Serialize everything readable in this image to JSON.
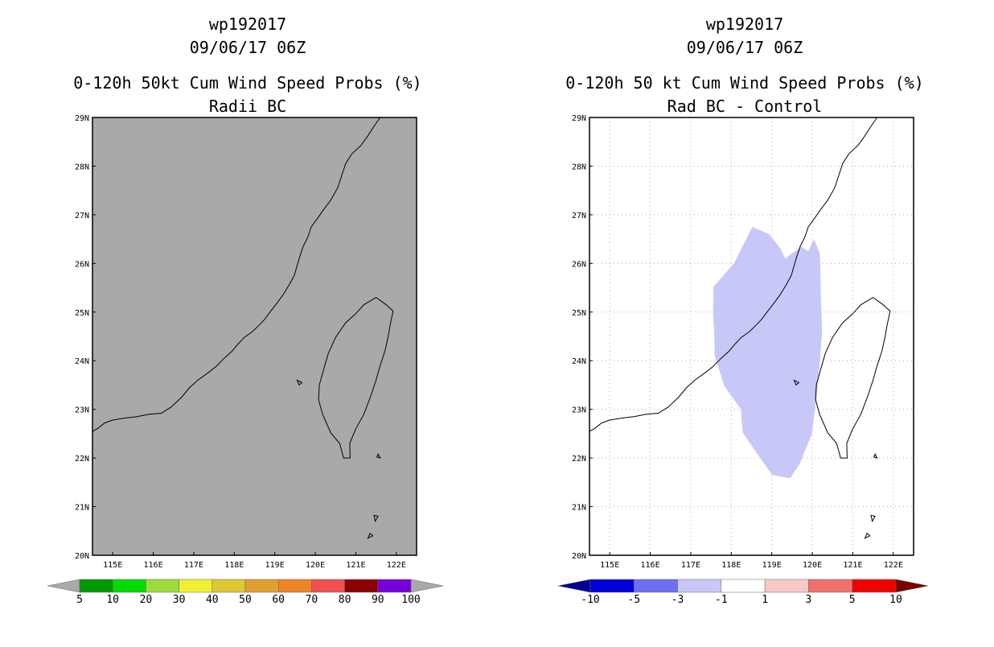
{
  "panels": [
    {
      "title_line1": "wp192017",
      "title_line2": "09/06/17 06Z",
      "title_line3": "0-120h 50kt Cum Wind Speed Probs (%)",
      "title_line4": "Radii BC",
      "background": "#a9a9a9"
    },
    {
      "title_line1": "wp192017",
      "title_line2": "09/06/17 06Z",
      "title_line3": "0-120h 50 kt Cum Wind Speed Probs (%)",
      "title_line4": "Rad BC - Control",
      "background": "#ffffff"
    }
  ],
  "chart_data": [
    {
      "type": "heatmap",
      "title": "0-120h 50kt Cum Wind Speed Probs (%)",
      "subtitle": "Radii BC",
      "storm": "wp192017",
      "time": "09/06/17 06Z",
      "xlim": [
        114.5,
        122.5
      ],
      "ylim": [
        20,
        29
      ],
      "x_ticks": [
        115,
        116,
        117,
        118,
        119,
        120,
        121,
        122
      ],
      "x_tick_labels": [
        "115E",
        "116E",
        "117E",
        "118E",
        "119E",
        "120E",
        "121E",
        "122E"
      ],
      "y_ticks": [
        20,
        21,
        22,
        23,
        24,
        25,
        26,
        27,
        28,
        29
      ],
      "y_tick_labels": [
        "20N",
        "21N",
        "22N",
        "23N",
        "24N",
        "25N",
        "26N",
        "27N",
        "28N",
        "29N"
      ],
      "grid": false,
      "field": "uniform background, no probability contours",
      "colorbar": {
        "levels": [
          "5",
          "10",
          "20",
          "30",
          "40",
          "50",
          "60",
          "70",
          "80",
          "90",
          "100"
        ],
        "colors": [
          "#009a00",
          "#00dc00",
          "#9ddc3c",
          "#f0f032",
          "#dcc832",
          "#e0a030",
          "#f08228",
          "#f05050",
          "#8c0000",
          "#7800dc"
        ],
        "under_color": "#a9a9a9",
        "over_color": "#a9a9a9"
      }
    },
    {
      "type": "heatmap",
      "title": "0-120h 50 kt Cum Wind Speed Probs (%)",
      "subtitle": "Rad BC - Control",
      "storm": "wp192017",
      "time": "09/06/17 06Z",
      "xlim": [
        114.5,
        122.5
      ],
      "ylim": [
        20,
        29
      ],
      "x_ticks": [
        115,
        116,
        117,
        118,
        119,
        120,
        121,
        122
      ],
      "x_tick_labels": [
        "115E",
        "116E",
        "117E",
        "118E",
        "119E",
        "120E",
        "121E",
        "122E"
      ],
      "y_ticks": [
        20,
        21,
        22,
        23,
        24,
        25,
        26,
        27,
        28,
        29
      ],
      "y_tick_labels": [
        "20N",
        "21N",
        "22N",
        "23N",
        "24N",
        "25N",
        "26N",
        "27N",
        "28N",
        "29N"
      ],
      "grid": true,
      "difference_region": {
        "category": "-3 to -1",
        "color": "#c8c8f8",
        "polygon_lonlat": [
          [
            118.52,
            26.75
          ],
          [
            118.94,
            26.6
          ],
          [
            119.22,
            26.3
          ],
          [
            119.33,
            26.1
          ],
          [
            119.73,
            26.35
          ],
          [
            119.9,
            26.25
          ],
          [
            120.04,
            26.5
          ],
          [
            120.19,
            26.2
          ],
          [
            120.21,
            25.4
          ],
          [
            120.24,
            24.6
          ],
          [
            120.19,
            24.0
          ],
          [
            120.11,
            23.3
          ],
          [
            119.99,
            22.5
          ],
          [
            119.69,
            21.88
          ],
          [
            119.45,
            21.58
          ],
          [
            119.01,
            21.65
          ],
          [
            118.63,
            22.1
          ],
          [
            118.28,
            22.53
          ],
          [
            118.24,
            23.0
          ],
          [
            117.83,
            23.48
          ],
          [
            117.59,
            24.1
          ],
          [
            117.58,
            24.57
          ],
          [
            117.55,
            24.95
          ],
          [
            117.56,
            25.52
          ],
          [
            118.07,
            26.0
          ]
        ]
      },
      "colorbar": {
        "levels": [
          "-10",
          "-5",
          "-3",
          "-1",
          "1",
          "3",
          "5",
          "10"
        ],
        "colors": [
          "#0000d8",
          "#6e6ef0",
          "#c8c8f8",
          "#ffffff",
          "#f8c8c8",
          "#f07070",
          "#f00000"
        ],
        "under_color": "#000090",
        "over_color": "#780000"
      }
    }
  ],
  "geography": {
    "coastline_lonlat": [
      [
        114.5,
        22.55
      ],
      [
        114.62,
        22.6
      ],
      [
        114.8,
        22.72
      ],
      [
        115.0,
        22.78
      ],
      [
        115.3,
        22.82
      ],
      [
        115.6,
        22.85
      ],
      [
        115.9,
        22.9
      ],
      [
        116.2,
        22.92
      ],
      [
        116.45,
        23.05
      ],
      [
        116.7,
        23.25
      ],
      [
        116.9,
        23.45
      ],
      [
        117.1,
        23.6
      ],
      [
        117.35,
        23.75
      ],
      [
        117.55,
        23.88
      ],
      [
        117.75,
        24.05
      ],
      [
        117.95,
        24.2
      ],
      [
        118.1,
        24.35
      ],
      [
        118.25,
        24.48
      ],
      [
        118.45,
        24.6
      ],
      [
        118.6,
        24.72
      ],
      [
        118.75,
        24.85
      ],
      [
        118.9,
        25.02
      ],
      [
        119.05,
        25.18
      ],
      [
        119.2,
        25.35
      ],
      [
        119.35,
        25.55
      ],
      [
        119.48,
        25.75
      ],
      [
        119.55,
        25.95
      ],
      [
        119.62,
        26.15
      ],
      [
        119.7,
        26.35
      ],
      [
        119.82,
        26.55
      ],
      [
        119.9,
        26.75
      ],
      [
        120.05,
        26.92
      ],
      [
        120.2,
        27.1
      ],
      [
        120.38,
        27.3
      ],
      [
        120.55,
        27.55
      ],
      [
        120.65,
        27.8
      ],
      [
        120.75,
        28.05
      ],
      [
        120.9,
        28.25
      ],
      [
        121.12,
        28.42
      ],
      [
        121.28,
        28.6
      ],
      [
        121.45,
        28.82
      ],
      [
        121.6,
        29.0
      ]
    ],
    "taiwan_lonlat": [
      [
        121.5,
        25.3
      ],
      [
        121.75,
        25.15
      ],
      [
        121.92,
        25.02
      ],
      [
        121.85,
        24.75
      ],
      [
        121.8,
        24.5
      ],
      [
        121.72,
        24.2
      ],
      [
        121.6,
        23.9
      ],
      [
        121.5,
        23.6
      ],
      [
        121.38,
        23.3
      ],
      [
        121.2,
        22.9
      ],
      [
        121.0,
        22.6
      ],
      [
        120.85,
        22.3
      ],
      [
        120.86,
        22.0
      ],
      [
        120.7,
        22.0
      ],
      [
        120.6,
        22.3
      ],
      [
        120.38,
        22.52
      ],
      [
        120.18,
        22.9
      ],
      [
        120.08,
        23.2
      ],
      [
        120.1,
        23.5
      ],
      [
        120.2,
        23.8
      ],
      [
        120.32,
        24.15
      ],
      [
        120.5,
        24.48
      ],
      [
        120.75,
        24.78
      ],
      [
        120.98,
        24.95
      ],
      [
        121.2,
        25.15
      ]
    ],
    "islands_lonlat": [
      [
        [
          119.55,
          23.6
        ],
        [
          119.67,
          23.55
        ],
        [
          119.6,
          23.5
        ]
      ],
      [
        [
          121.55,
          22.08
        ],
        [
          121.6,
          22.0
        ],
        [
          121.52,
          22.02
        ]
      ],
      [
        [
          121.45,
          20.82
        ],
        [
          121.55,
          20.8
        ],
        [
          121.48,
          20.7
        ]
      ],
      [
        [
          121.35,
          20.45
        ],
        [
          121.42,
          20.4
        ],
        [
          121.3,
          20.35
        ]
      ]
    ]
  }
}
